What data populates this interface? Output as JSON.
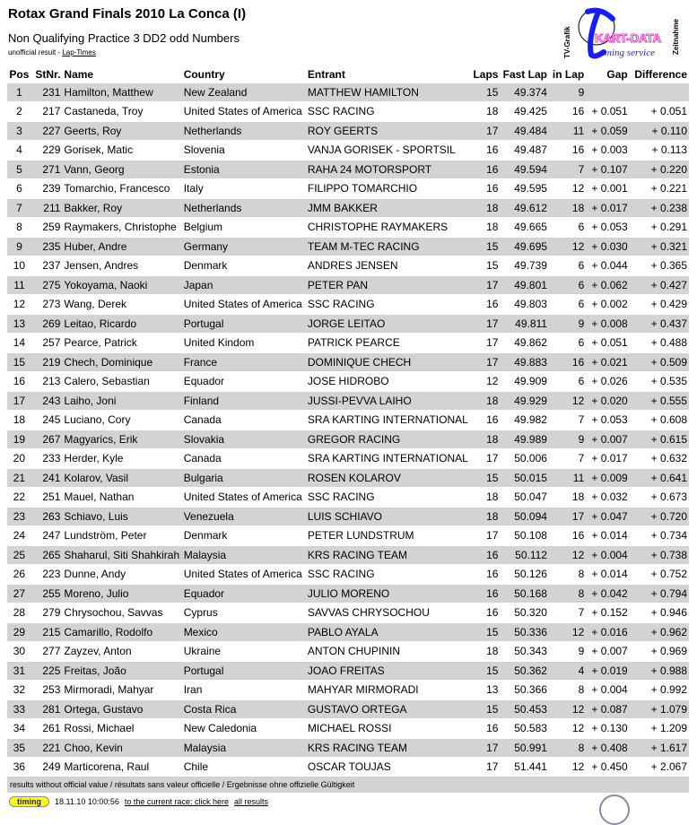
{
  "header": {
    "title": "Rotax Grand Finals 2010 La Conca (I)",
    "subtitle": "Non Qualifying Practice 3 DD2 odd Numbers",
    "status": "unofficial result",
    "sep": " - ",
    "lap_times_link": "Lap-Times"
  },
  "logo": {
    "text_left": "TV-Grafik",
    "text_main": "KART-DATA",
    "text_sub": "timing service",
    "text_right": "Zeitnahme"
  },
  "colors": {
    "row_alt": "#d3d3d3",
    "logo_blue": "#1a1aff",
    "logo_pink": "#ff33cc"
  },
  "columns": [
    "Pos",
    "StNr.",
    "Name",
    "Country",
    "Entrant",
    "Laps",
    "Fast Lap",
    "in Lap",
    "Gap",
    "Difference"
  ],
  "rows": [
    [
      "1",
      "231",
      "Hamilton, Matthew",
      "New Zealand",
      "MATTHEW HAMILTON",
      "15",
      "49.374",
      "9",
      "",
      ""
    ],
    [
      "2",
      "217",
      "Castaneda, Troy",
      "United States of America",
      "SSC RACING",
      "18",
      "49.425",
      "16",
      "+ 0.051",
      "+ 0.051"
    ],
    [
      "3",
      "227",
      "Geerts, Roy",
      "Netherlands",
      "ROY GEERTS",
      "17",
      "49.484",
      "11",
      "+ 0.059",
      "+ 0.110"
    ],
    [
      "4",
      "229",
      "Gorisek, Matic",
      "Slovenia",
      "VANJA GORISEK - SPORTSIL",
      "16",
      "49.487",
      "16",
      "+ 0.003",
      "+ 0.113"
    ],
    [
      "5",
      "271",
      "Vann, Georg",
      "Estonia",
      "RAHA 24 MOTORSPORT",
      "16",
      "49.594",
      "7",
      "+ 0.107",
      "+ 0.220"
    ],
    [
      "6",
      "239",
      "Tomarchio, Francesco",
      "Italy",
      "FILIPPO TOMARCHIO",
      "16",
      "49.595",
      "12",
      "+ 0.001",
      "+ 0.221"
    ],
    [
      "7",
      "211",
      "Bakker, Roy",
      "Netherlands",
      "JMM BAKKER",
      "18",
      "49.612",
      "18",
      "+ 0.017",
      "+ 0.238"
    ],
    [
      "8",
      "259",
      "Raymakers, Christophe",
      "Belgium",
      "CHRISTOPHE RAYMAKERS",
      "18",
      "49.665",
      "6",
      "+ 0.053",
      "+ 0.291"
    ],
    [
      "9",
      "235",
      "Huber, Andre",
      "Germany",
      "TEAM M-TEC RACING",
      "15",
      "49.695",
      "12",
      "+ 0.030",
      "+ 0.321"
    ],
    [
      "10",
      "237",
      "Jensen, Andres",
      "Denmark",
      "ANDRES JENSEN",
      "15",
      "49.739",
      "6",
      "+ 0.044",
      "+ 0.365"
    ],
    [
      "11",
      "275",
      "Yokoyama, Naoki",
      "Japan",
      "PETER PAN",
      "17",
      "49.801",
      "6",
      "+ 0.062",
      "+ 0.427"
    ],
    [
      "12",
      "273",
      "Wang, Derek",
      "United States of America",
      "SSC RACING",
      "16",
      "49.803",
      "6",
      "+ 0.002",
      "+ 0.429"
    ],
    [
      "13",
      "269",
      "Leitao, Ricardo",
      "Portugal",
      "JORGE LEITAO",
      "17",
      "49.811",
      "9",
      "+ 0.008",
      "+ 0.437"
    ],
    [
      "14",
      "257",
      "Pearce, Patrick",
      "United Kindom",
      "PATRICK PEARCE",
      "17",
      "49.862",
      "6",
      "+ 0.051",
      "+ 0.488"
    ],
    [
      "15",
      "219",
      "Chech, Dominique",
      "France",
      "DOMINIQUE CHECH",
      "17",
      "49.883",
      "16",
      "+ 0.021",
      "+ 0.509"
    ],
    [
      "16",
      "213",
      "Calero, Sebastian",
      "Equador",
      "JOSE HIDROBO",
      "12",
      "49.909",
      "6",
      "+ 0.026",
      "+ 0.535"
    ],
    [
      "17",
      "243",
      "Laiho, Joni",
      "Finland",
      "JUSSI-PEVVA LAIHO",
      "18",
      "49.929",
      "12",
      "+ 0.020",
      "+ 0.555"
    ],
    [
      "18",
      "245",
      "Luciano, Cory",
      "Canada",
      "SRA KARTING INTERNATIONAL",
      "16",
      "49.982",
      "7",
      "+ 0.053",
      "+ 0.608"
    ],
    [
      "19",
      "267",
      "Magyarics, Erik",
      "Slovakia",
      "GREGOR RACING",
      "18",
      "49.989",
      "9",
      "+ 0.007",
      "+ 0.615"
    ],
    [
      "20",
      "233",
      "Herder, Kyle",
      "Canada",
      "SRA KARTING INTERNATIONAL",
      "17",
      "50.006",
      "7",
      "+ 0.017",
      "+ 0.632"
    ],
    [
      "21",
      "241",
      "Kolarov, Vasil",
      "Bulgaria",
      "ROSEN KOLAROV",
      "15",
      "50.015",
      "11",
      "+ 0.009",
      "+ 0.641"
    ],
    [
      "22",
      "251",
      "Mauel, Nathan",
      "United States of America",
      "SSC RACING",
      "18",
      "50.047",
      "18",
      "+ 0.032",
      "+ 0.673"
    ],
    [
      "23",
      "263",
      "Schiavo, Luis",
      "Venezuela",
      "LUIS SCHIAVO",
      "18",
      "50.094",
      "17",
      "+ 0.047",
      "+ 0.720"
    ],
    [
      "24",
      "247",
      "Lundström, Peter",
      "Denmark",
      "PETER LUNDSTRUM",
      "17",
      "50.108",
      "16",
      "+ 0.014",
      "+ 0.734"
    ],
    [
      "25",
      "265",
      "Shaharul, Siti Shahkirah",
      "Malaysia",
      "KRS RACING TEAM",
      "16",
      "50.112",
      "12",
      "+ 0.004",
      "+ 0.738"
    ],
    [
      "26",
      "223",
      "Dunne, Andy",
      "United States of America",
      "SSC RACING",
      "16",
      "50.126",
      "8",
      "+ 0.014",
      "+ 0.752"
    ],
    [
      "27",
      "255",
      "Moreno, Julio",
      "Equador",
      "JULIO MORENO",
      "16",
      "50.168",
      "8",
      "+ 0.042",
      "+ 0.794"
    ],
    [
      "28",
      "279",
      "Chrysochou, Savvas",
      "Cyprus",
      "SAVVAS CHRYSOCHOU",
      "16",
      "50.320",
      "7",
      "+ 0.152",
      "+ 0.946"
    ],
    [
      "29",
      "215",
      "Camarillo, Rodolfo",
      "Mexico",
      "PABLO AYALA",
      "15",
      "50.336",
      "12",
      "+ 0.016",
      "+ 0.962"
    ],
    [
      "30",
      "277",
      "Zayzev, Anton",
      "Ukraine",
      "ANTON CHUPININ",
      "18",
      "50.343",
      "9",
      "+ 0.007",
      "+ 0.969"
    ],
    [
      "31",
      "225",
      "Freitas, João",
      "Portugal",
      "JOAO FREITAS",
      "15",
      "50.362",
      "4",
      "+ 0.019",
      "+ 0.988"
    ],
    [
      "32",
      "253",
      "Mirmoradi, Mahyar",
      "Iran",
      "MAHYAR MIRMORADI",
      "13",
      "50.366",
      "8",
      "+ 0.004",
      "+ 0.992"
    ],
    [
      "33",
      "281",
      "Ortega, Gustavo",
      "Costa Rica",
      "GUSTAVO ORTEGA",
      "15",
      "50.453",
      "12",
      "+ 0.087",
      "+ 1.079"
    ],
    [
      "34",
      "261",
      "Rossi, Michael",
      "New Caledonia",
      "MICHAEL ROSSI",
      "16",
      "50.583",
      "12",
      "+ 0.130",
      "+ 1.209"
    ],
    [
      "35",
      "221",
      "Choo, Kevin",
      "Malaysia",
      "KRS RACING TEAM",
      "17",
      "50.991",
      "8",
      "+ 0.408",
      "+ 1.617"
    ],
    [
      "36",
      "249",
      "Marticorena, Raul",
      "Chile",
      "OSCAR TOUJAS",
      "17",
      "51.441",
      "12",
      "+ 0.450",
      "+ 2.067"
    ]
  ],
  "footer": {
    "disclaimer": "results without official value / résultats sans valeur officielle / Ergebnisse ohne offizielle Gültigkeit",
    "badge": "timing",
    "timestamp": "18.11.10 10:00:56",
    "current_race_link": "to the current race: click here",
    "all_results_link": "all results"
  }
}
